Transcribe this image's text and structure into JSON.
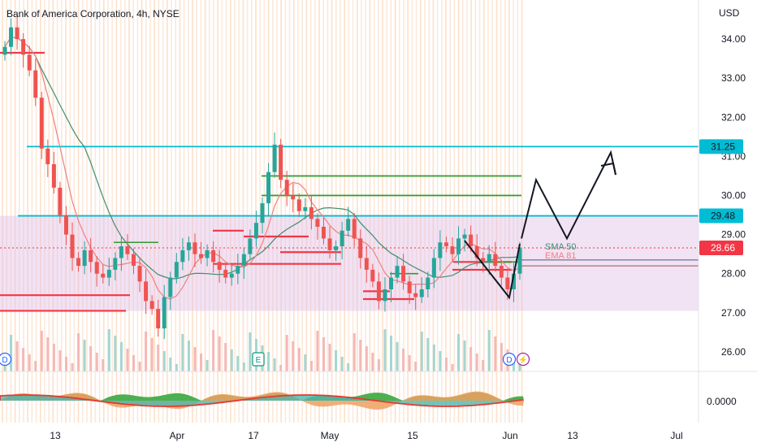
{
  "header": {
    "title": "Bank of America Corporation, 4h, NYSE",
    "currency": "USD"
  },
  "colors": {
    "up": "#26a69a",
    "down": "#ef5350",
    "sma": "#3f8f6e",
    "ema": "#f08080",
    "cyan": "#00bcd4",
    "green_line": "#2e9b2e",
    "red_level": "#f23645",
    "box": "#e1bee7",
    "black": "#131722"
  },
  "chart_data": {
    "type": "candlestick",
    "symbol": "Bank of America Corporation, 4h, NYSE",
    "currency": "USD",
    "x_ticks": [
      "13",
      "Apr",
      "17",
      "May",
      "15",
      "Jun",
      "13",
      "Jul"
    ],
    "y_ticks": [
      "34.00",
      "33.00",
      "32.00",
      "31.00",
      "30.00",
      "29.00",
      "28.00",
      "27.00",
      "26.00"
    ],
    "ylim": [
      25.5,
      35.0
    ],
    "price_labels": [
      {
        "value": "31.25",
        "color": "#00bcd4",
        "text_color": "#131722"
      },
      {
        "value": "29.48",
        "color": "#00bcd4",
        "text_color": "#131722"
      },
      {
        "value": "28.66",
        "color": "#f23645",
        "text_color": "#ffffff"
      }
    ],
    "indicators": [
      {
        "name": "SMA 50",
        "color": "#3f8f6e"
      },
      {
        "name": "EMA 81",
        "color": "#f08080"
      }
    ],
    "event_markers": [
      "D",
      "E",
      "D",
      "⚡"
    ],
    "oscillator_ticks": [
      "0.0000"
    ],
    "horizontal_levels": [
      {
        "value": 31.25,
        "color": "cyan",
        "from_x": 0.15
      },
      {
        "value": 29.48,
        "color": "cyan",
        "from_x": 0.0
      },
      {
        "value": 30.5,
        "color": "green"
      },
      {
        "value": 30.0,
        "color": "green"
      }
    ],
    "range_box": {
      "from": 27.05,
      "to": 29.48
    },
    "projection_path": [
      {
        "x_label": "Jun",
        "value": 28.9
      },
      {
        "x_label": "Jun+",
        "value": 30.4
      },
      {
        "x_label": "Jun++",
        "value": 28.9
      },
      {
        "x_label": "13+",
        "value": 31.1
      }
    ],
    "close_series": [
      33.8,
      34.3,
      34.0,
      33.6,
      33.2,
      32.5,
      31.2,
      30.8,
      30.2,
      29.5,
      29.0,
      28.4,
      28.2,
      28.6,
      28.3,
      28.0,
      27.9,
      28.1,
      28.4,
      28.7,
      28.5,
      28.2,
      27.8,
      27.3,
      27.1,
      26.6,
      27.4,
      27.9,
      28.3,
      28.6,
      28.8,
      28.5,
      28.4,
      28.6,
      28.3,
      28.1,
      27.9,
      28.0,
      28.2,
      28.5,
      28.9,
      29.3,
      29.8,
      30.6,
      31.3,
      30.4,
      30.0,
      29.9,
      29.6,
      29.7,
      29.4,
      29.2,
      28.9,
      28.6,
      28.7,
      29.1,
      29.4,
      28.9,
      28.4,
      28.1,
      27.8,
      27.3,
      27.6,
      27.9,
      28.2,
      27.8,
      27.5,
      27.4,
      27.6,
      27.9,
      28.4,
      28.8,
      28.7,
      28.5,
      28.9,
      29.0,
      28.7,
      28.4,
      28.3,
      28.5,
      28.2,
      27.9,
      27.6,
      28.0,
      28.66
    ]
  },
  "oscillator": {
    "zero_label": "0.0000"
  }
}
